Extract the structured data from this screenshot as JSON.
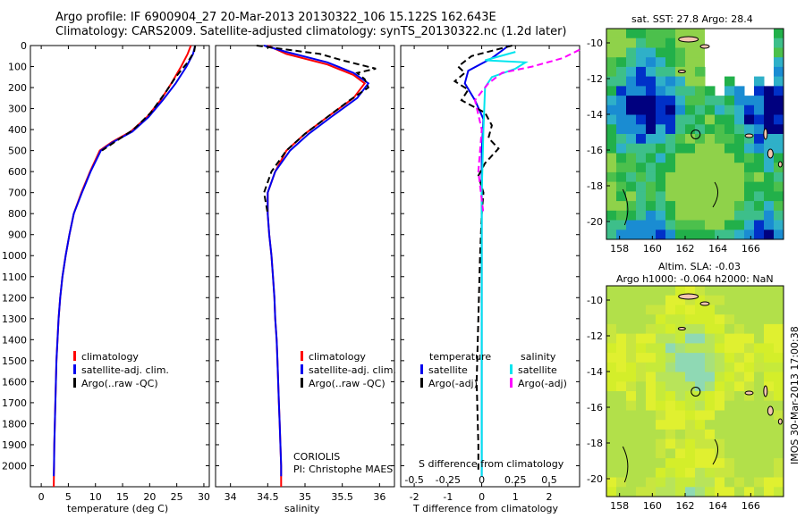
{
  "header": {
    "title_line1": "Argo profile: IF 6900904_27 20-Mar-2013 20130322_106 15.122S 162.643E",
    "title_line2": "Climatology: CARS2009. Satellite-adjusted climatology: synTS_20130322.nc (1.2d later)"
  },
  "colors": {
    "climatology": "#ff0000",
    "satellite": "#0000ee",
    "argo": "#000000",
    "sat_salinity": "#00e5ee",
    "argo_salinity_adj": "#ff00ff"
  },
  "credits": {
    "line1": "CORIOLIS",
    "line2": "PI: Christophe MAES"
  },
  "stamp": "IMOS 30-Mar-2013 17:00:38",
  "chart_data": [
    {
      "id": "temperature",
      "type": "line",
      "xlabel": "temperature (deg C)",
      "ylabel": "",
      "xlim": [
        -2,
        31
      ],
      "ylim": [
        2100,
        0
      ],
      "xticks": [
        0,
        5,
        10,
        15,
        20,
        25,
        30
      ],
      "yticks": [
        0,
        100,
        200,
        300,
        400,
        500,
        600,
        700,
        800,
        900,
        1000,
        1100,
        1200,
        1300,
        1400,
        1500,
        1600,
        1700,
        1800,
        1900,
        2000
      ],
      "legend": [
        "climatology",
        "satellite-adj. clim.",
        "Argo(..raw -QC)"
      ],
      "series": [
        {
          "name": "climatology",
          "color": "#ff0000",
          "points": [
            [
              27.6,
              0
            ],
            [
              27.0,
              40
            ],
            [
              25.8,
              100
            ],
            [
              24.0,
              180
            ],
            [
              22.0,
              260
            ],
            [
              19.5,
              340
            ],
            [
              16.5,
              410
            ],
            [
              13.0,
              460
            ],
            [
              10.8,
              500
            ],
            [
              9.0,
              600
            ],
            [
              7.4,
              700
            ],
            [
              6.0,
              800
            ],
            [
              5.2,
              900
            ],
            [
              4.5,
              1000
            ],
            [
              3.9,
              1100
            ],
            [
              3.5,
              1200
            ],
            [
              3.2,
              1300
            ],
            [
              3.0,
              1400
            ],
            [
              2.8,
              1500
            ],
            [
              2.7,
              1600
            ],
            [
              2.6,
              1700
            ],
            [
              2.5,
              1800
            ],
            [
              2.4,
              1900
            ],
            [
              2.35,
              2000
            ],
            [
              2.3,
              2100
            ]
          ]
        },
        {
          "name": "satellite-adj. clim.",
          "color": "#0000ee",
          "points": [
            [
              28.4,
              0
            ],
            [
              28.0,
              40
            ],
            [
              26.8,
              100
            ],
            [
              24.8,
              180
            ],
            [
              22.4,
              260
            ],
            [
              19.8,
              340
            ],
            [
              16.8,
              410
            ],
            [
              13.2,
              460
            ],
            [
              11.0,
              500
            ],
            [
              9.1,
              600
            ],
            [
              7.5,
              700
            ],
            [
              6.0,
              800
            ],
            [
              5.2,
              900
            ],
            [
              4.5,
              1000
            ],
            [
              3.9,
              1100
            ],
            [
              3.5,
              1200
            ],
            [
              3.2,
              1300
            ],
            [
              3.0,
              1400
            ],
            [
              2.8,
              1500
            ],
            [
              2.7,
              1600
            ],
            [
              2.6,
              1700
            ],
            [
              2.5,
              1800
            ],
            [
              2.4,
              1900
            ],
            [
              2.35,
              2000
            ],
            [
              2.3,
              2050
            ]
          ]
        },
        {
          "name": "Argo(..raw -QC)",
          "color": "#000000",
          "points": [
            [
              28.4,
              0
            ],
            [
              28.2,
              30
            ],
            [
              27.0,
              80
            ],
            [
              24.8,
              150
            ],
            [
              23.0,
              220
            ],
            [
              20.2,
              320
            ],
            [
              17.0,
              400
            ],
            [
              13.5,
              460
            ],
            [
              11.2,
              500
            ]
          ]
        }
      ]
    },
    {
      "id": "salinity",
      "type": "line",
      "xlabel": "salinity",
      "xlim": [
        33.8,
        36.2
      ],
      "ylim": [
        2100,
        0
      ],
      "xticks": [
        34,
        34.5,
        35,
        35.5,
        36
      ],
      "legend": [
        "climatology",
        "satellite-adj. clim.",
        "Argo(..raw -QC)"
      ],
      "series": [
        {
          "name": "climatology",
          "color": "#ff0000",
          "points": [
            [
              34.5,
              0
            ],
            [
              34.75,
              40
            ],
            [
              35.3,
              90
            ],
            [
              35.65,
              140
            ],
            [
              35.8,
              180
            ],
            [
              35.65,
              250
            ],
            [
              35.3,
              340
            ],
            [
              35.0,
              420
            ],
            [
              34.75,
              500
            ],
            [
              34.6,
              600
            ],
            [
              34.5,
              700
            ],
            [
              34.5,
              800
            ],
            [
              34.52,
              900
            ],
            [
              34.55,
              1000
            ],
            [
              34.57,
              1100
            ],
            [
              34.59,
              1200
            ],
            [
              34.6,
              1300
            ],
            [
              34.62,
              1400
            ],
            [
              34.63,
              1500
            ],
            [
              34.64,
              1600
            ],
            [
              34.65,
              1700
            ],
            [
              34.66,
              1800
            ],
            [
              34.67,
              1900
            ],
            [
              34.68,
              2000
            ],
            [
              34.68,
              2100
            ]
          ]
        },
        {
          "name": "satellite-adj. clim.",
          "color": "#0000ee",
          "points": [
            [
              34.45,
              0
            ],
            [
              34.75,
              30
            ],
            [
              35.3,
              80
            ],
            [
              35.65,
              130
            ],
            [
              35.85,
              180
            ],
            [
              35.7,
              250
            ],
            [
              35.35,
              340
            ],
            [
              35.05,
              420
            ],
            [
              34.8,
              500
            ],
            [
              34.6,
              600
            ],
            [
              34.5,
              700
            ],
            [
              34.5,
              800
            ],
            [
              34.52,
              900
            ],
            [
              34.55,
              1000
            ],
            [
              34.57,
              1100
            ],
            [
              34.59,
              1200
            ],
            [
              34.6,
              1300
            ],
            [
              34.62,
              1400
            ],
            [
              34.63,
              1500
            ],
            [
              34.64,
              1600
            ],
            [
              34.65,
              1700
            ],
            [
              34.66,
              1800
            ],
            [
              34.67,
              1900
            ],
            [
              34.68,
              2000
            ],
            [
              34.68,
              2050
            ]
          ]
        },
        {
          "name": "Argo(..raw -QC)",
          "color": "#000000",
          "points": [
            [
              34.35,
              0
            ],
            [
              35.2,
              40
            ],
            [
              35.5,
              70
            ],
            [
              35.95,
              110
            ],
            [
              35.7,
              130
            ],
            [
              35.8,
              160
            ],
            [
              35.85,
              200
            ],
            [
              35.6,
              260
            ],
            [
              35.3,
              340
            ],
            [
              35.0,
              420
            ],
            [
              34.75,
              500
            ],
            [
              34.55,
              600
            ],
            [
              34.45,
              700
            ],
            [
              34.5,
              800
            ]
          ]
        }
      ]
    },
    {
      "id": "difference",
      "type": "line",
      "xlabel": "T difference from climatology",
      "xlabel_top": "S difference from climatology",
      "xlim": [
        -2.4,
        2.9
      ],
      "ylim": [
        2100,
        0
      ],
      "xticks": [
        -2,
        -1,
        0,
        1,
        2
      ],
      "xticks_top": [
        -0.5,
        -0.25,
        0,
        0.25,
        0.5
      ],
      "legend_headers": [
        "temperature",
        "salinity"
      ],
      "legend": [
        "satellite",
        "Argo(-adj)",
        "satellite",
        "Argo(-adj)"
      ],
      "series": [
        {
          "name": "satellite",
          "quantity": "temperature",
          "color": "#0000ee",
          "points": [
            [
              0.8,
              0
            ],
            [
              0.3,
              60
            ],
            [
              -0.4,
              120
            ],
            [
              -0.5,
              180
            ],
            [
              -0.2,
              260
            ],
            [
              0.05,
              350
            ],
            [
              0,
              500
            ],
            [
              0,
              1000
            ],
            [
              0,
              1500
            ],
            [
              0,
              2050
            ]
          ]
        },
        {
          "name": "Argo(-adj)",
          "quantity": "temperature",
          "color": "#000000",
          "points": [
            [
              0.9,
              0
            ],
            [
              -0.3,
              50
            ],
            [
              -0.7,
              100
            ],
            [
              -0.5,
              130
            ],
            [
              -0.8,
              170
            ],
            [
              -0.4,
              210
            ],
            [
              -0.6,
              260
            ],
            [
              0.1,
              320
            ],
            [
              0.3,
              380
            ],
            [
              0.2,
              440
            ],
            [
              0.5,
              490
            ],
            [
              0.1,
              560
            ],
            [
              -0.1,
              620
            ],
            [
              0.05,
              700
            ],
            [
              0,
              800
            ],
            [
              -0.05,
              1000
            ],
            [
              -0.1,
              1300
            ],
            [
              -0.15,
              1600
            ],
            [
              -0.1,
              1900
            ],
            [
              -0.1,
              2020
            ]
          ]
        },
        {
          "name": "satellite",
          "quantity": "salinity",
          "color": "#00e5ee",
          "points": [
            [
              1.0,
              30
            ],
            [
              0.1,
              70
            ],
            [
              1.3,
              80
            ],
            [
              1.0,
              110
            ],
            [
              0.3,
              150
            ],
            [
              0.1,
              200
            ],
            [
              0.05,
              400
            ],
            [
              0,
              700
            ],
            [
              0,
              1200
            ],
            [
              0,
              1700
            ],
            [
              0,
              2050
            ]
          ]
        },
        {
          "name": "Argo(-adj)",
          "quantity": "salinity",
          "color": "#ff00ff",
          "points": [
            [
              2.9,
              20
            ],
            [
              2.4,
              60
            ],
            [
              1.5,
              100
            ],
            [
              0.6,
              130
            ],
            [
              0.2,
              180
            ],
            [
              -0.2,
              260
            ],
            [
              -0.1,
              330
            ],
            [
              0.0,
              400
            ],
            [
              -0.1,
              600
            ],
            [
              0.05,
              800
            ]
          ]
        }
      ]
    },
    {
      "id": "sst_map",
      "type": "heatmap",
      "title": "sat. SST: 27.8 Argo: 28.4",
      "xticks": [
        158,
        160,
        162,
        164,
        166
      ],
      "yticks": [
        -10,
        -12,
        -14,
        -16,
        -18,
        -20
      ],
      "xlim": [
        157.2,
        168
      ],
      "ylim": [
        -21,
        -9.2
      ],
      "marker": {
        "lon": 162.643,
        "lat": -15.122
      }
    },
    {
      "id": "sla_map",
      "type": "heatmap",
      "title_line1": "Altim. SLA: -0.03",
      "title_line2": "Argo h1000: -0.064 h2000: NaN",
      "xticks": [
        158,
        160,
        162,
        164,
        166
      ],
      "yticks": [
        -10,
        -12,
        -14,
        -16,
        -18,
        -20
      ],
      "xlim": [
        157.2,
        168
      ],
      "ylim": [
        -21,
        -9.2
      ],
      "marker": {
        "lon": 162.643,
        "lat": -15.122
      }
    }
  ]
}
